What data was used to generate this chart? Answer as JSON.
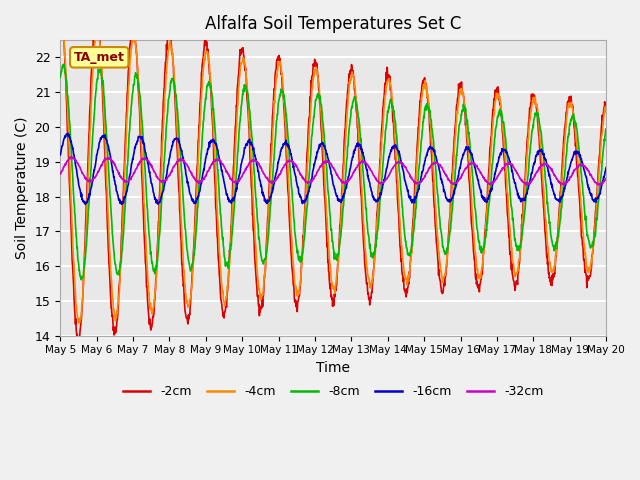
{
  "title": "Alfalfa Soil Temperatures Set C",
  "xlabel": "Time",
  "ylabel": "Soil Temperature (C)",
  "ylim": [
    14.0,
    22.5
  ],
  "yticks": [
    14.0,
    15.0,
    16.0,
    17.0,
    18.0,
    19.0,
    20.0,
    21.0,
    22.0
  ],
  "series_colors": [
    "#dd0000",
    "#ff8800",
    "#00bb00",
    "#0000cc",
    "#cc00cc"
  ],
  "series_labels": [
    "-2cm",
    "-4cm",
    "-8cm",
    "-16cm",
    "-32cm"
  ],
  "annotation_text": "TA_met",
  "annotation_box_color": "#ffff99",
  "annotation_box_edge_color": "#cc8800",
  "background_color": "#e8e8e8",
  "grid_color": "#ffffff",
  "fig_width": 6.4,
  "fig_height": 4.8,
  "dpi": 100
}
